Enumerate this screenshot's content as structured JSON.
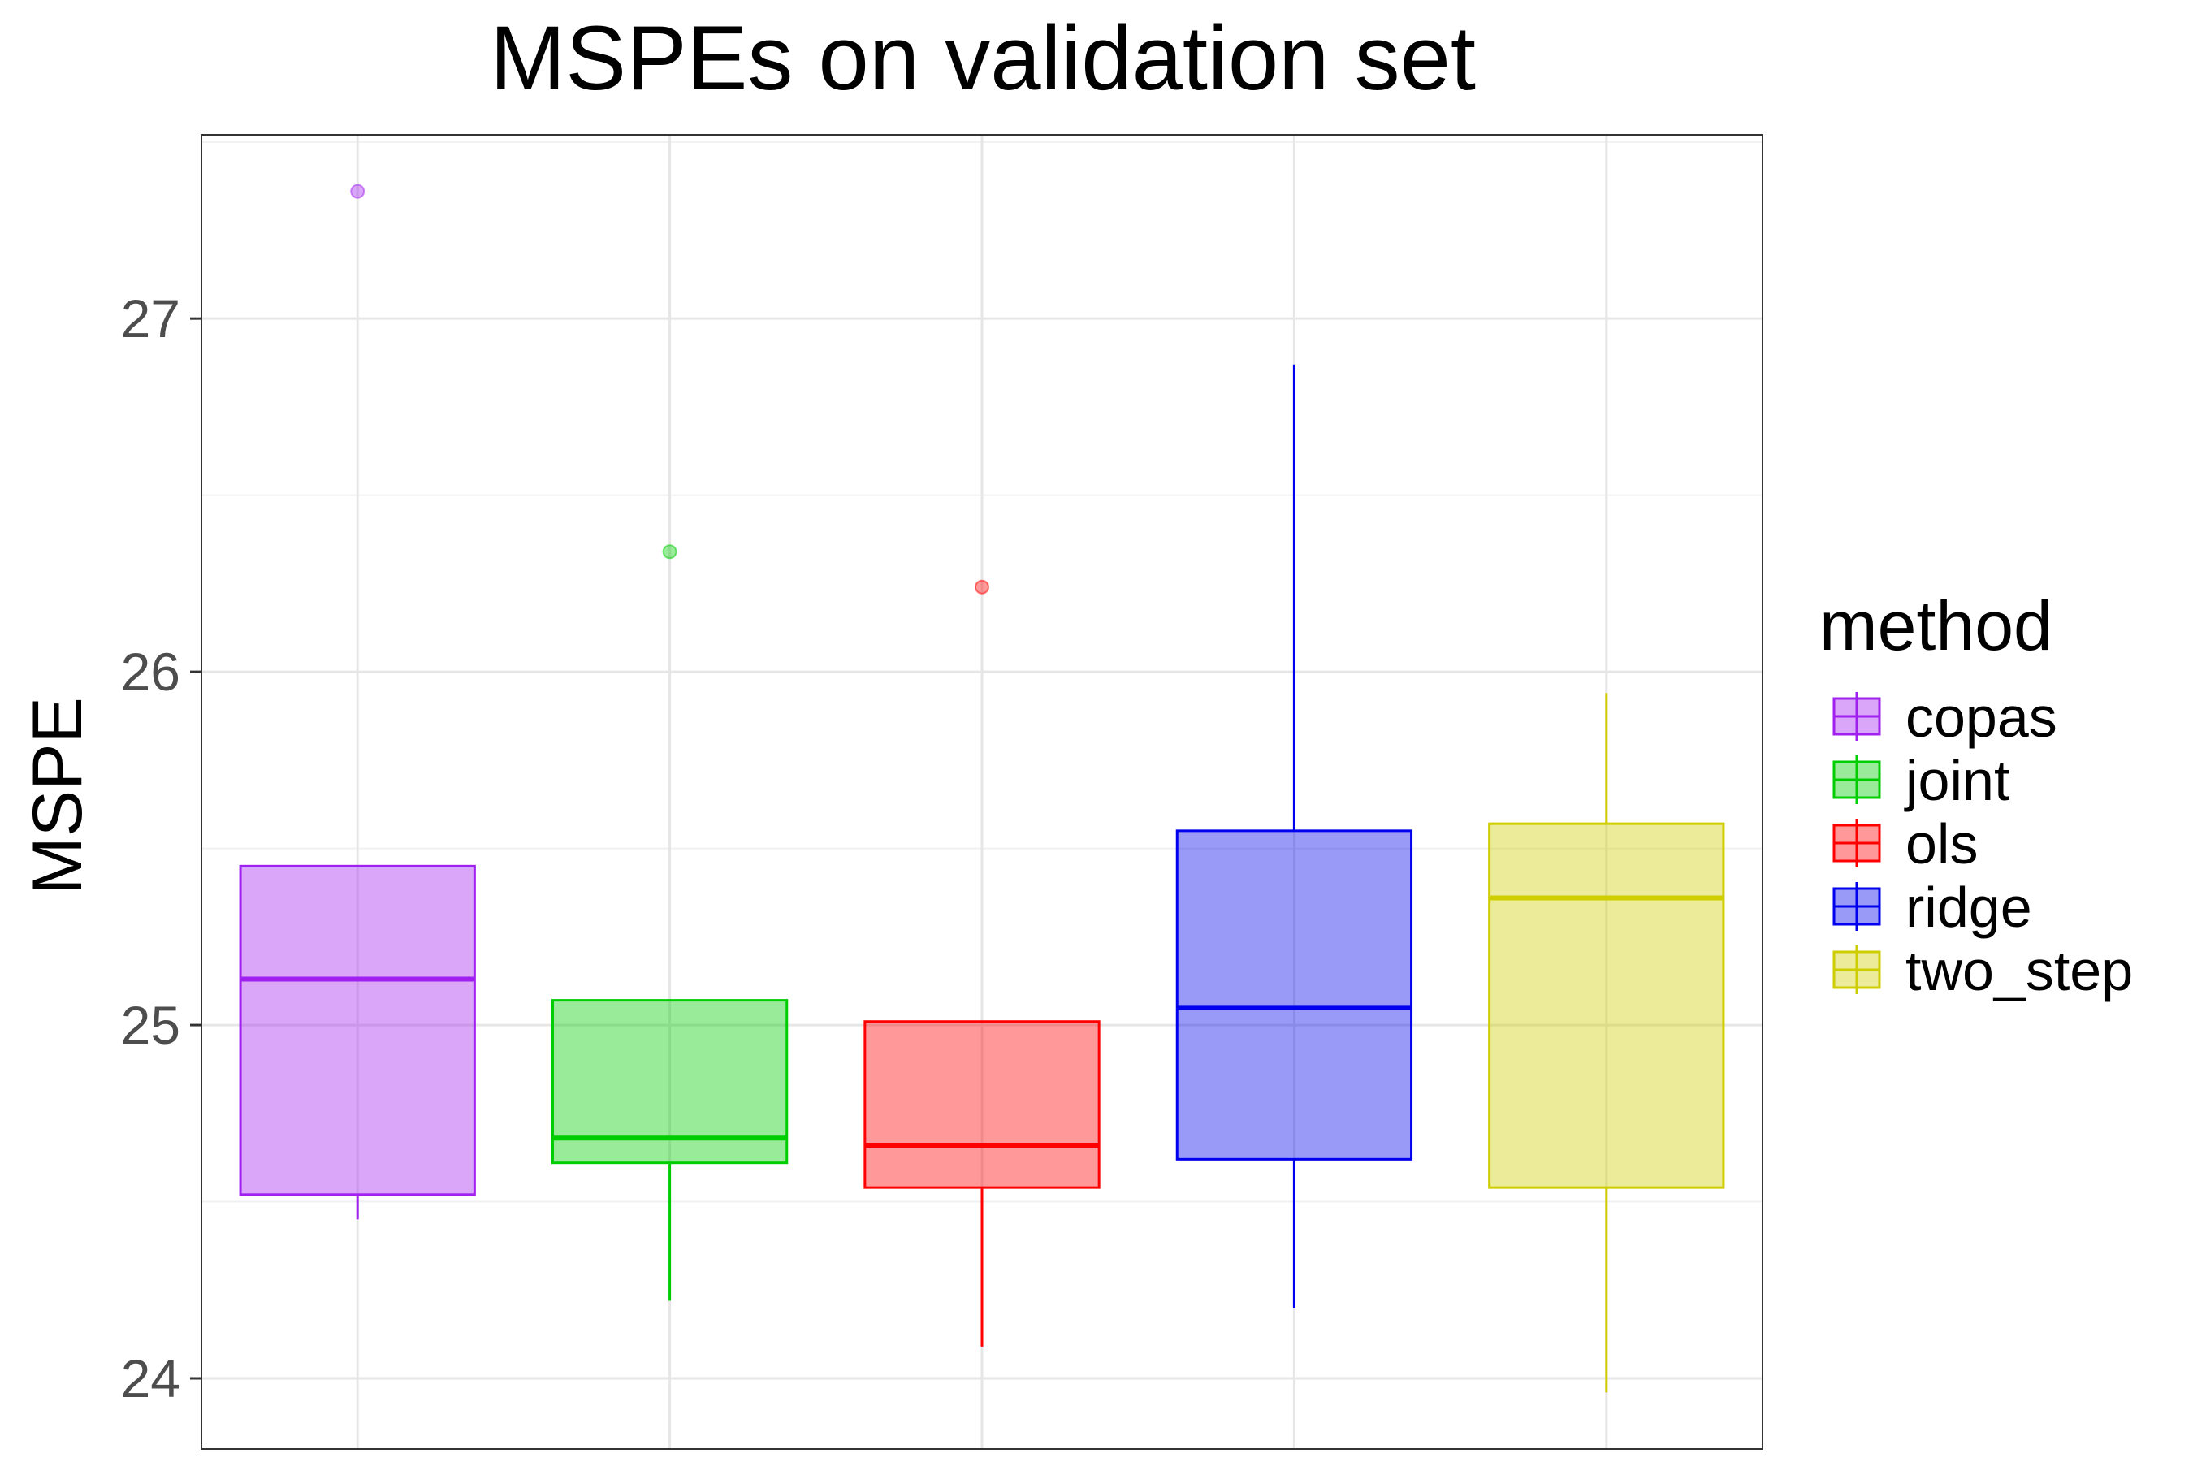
{
  "chart_data": {
    "type": "boxplot",
    "title": "MSPEs on validation set",
    "xlabel": "",
    "ylabel": "MSPE",
    "ylim": [
      23.8,
      27.52
    ],
    "y_ticks": [
      24,
      25,
      26,
      27
    ],
    "y_tick_labels": [
      "24",
      "25",
      "26",
      "27"
    ],
    "grid": true,
    "x_ticks_shown": false,
    "legend": {
      "title": "method",
      "position": "right"
    },
    "series": [
      {
        "name": "copas",
        "color": "#a020f0",
        "whisker_low": 24.45,
        "q1": 24.52,
        "median": 25.13,
        "q3": 25.45,
        "whisker_high": 25.45,
        "outliers": [
          27.36
        ]
      },
      {
        "name": "joint",
        "color": "#00cd00",
        "whisker_low": 24.22,
        "q1": 24.61,
        "median": 24.68,
        "q3": 25.07,
        "whisker_high": 25.07,
        "outliers": [
          26.34
        ]
      },
      {
        "name": "ols",
        "color": "#ff0000",
        "whisker_low": 24.09,
        "q1": 24.54,
        "median": 24.66,
        "q3": 25.01,
        "whisker_high": 25.01,
        "outliers": [
          26.24
        ]
      },
      {
        "name": "ridge",
        "color": "#0000ee",
        "whisker_low": 24.2,
        "q1": 24.62,
        "median": 25.05,
        "q3": 25.55,
        "whisker_high": 26.87,
        "outliers": []
      },
      {
        "name": "two_step",
        "color": "#cdcd00",
        "whisker_low": 23.96,
        "q1": 24.54,
        "median": 25.36,
        "q3": 25.57,
        "whisker_high": 25.94,
        "outliers": []
      }
    ]
  }
}
